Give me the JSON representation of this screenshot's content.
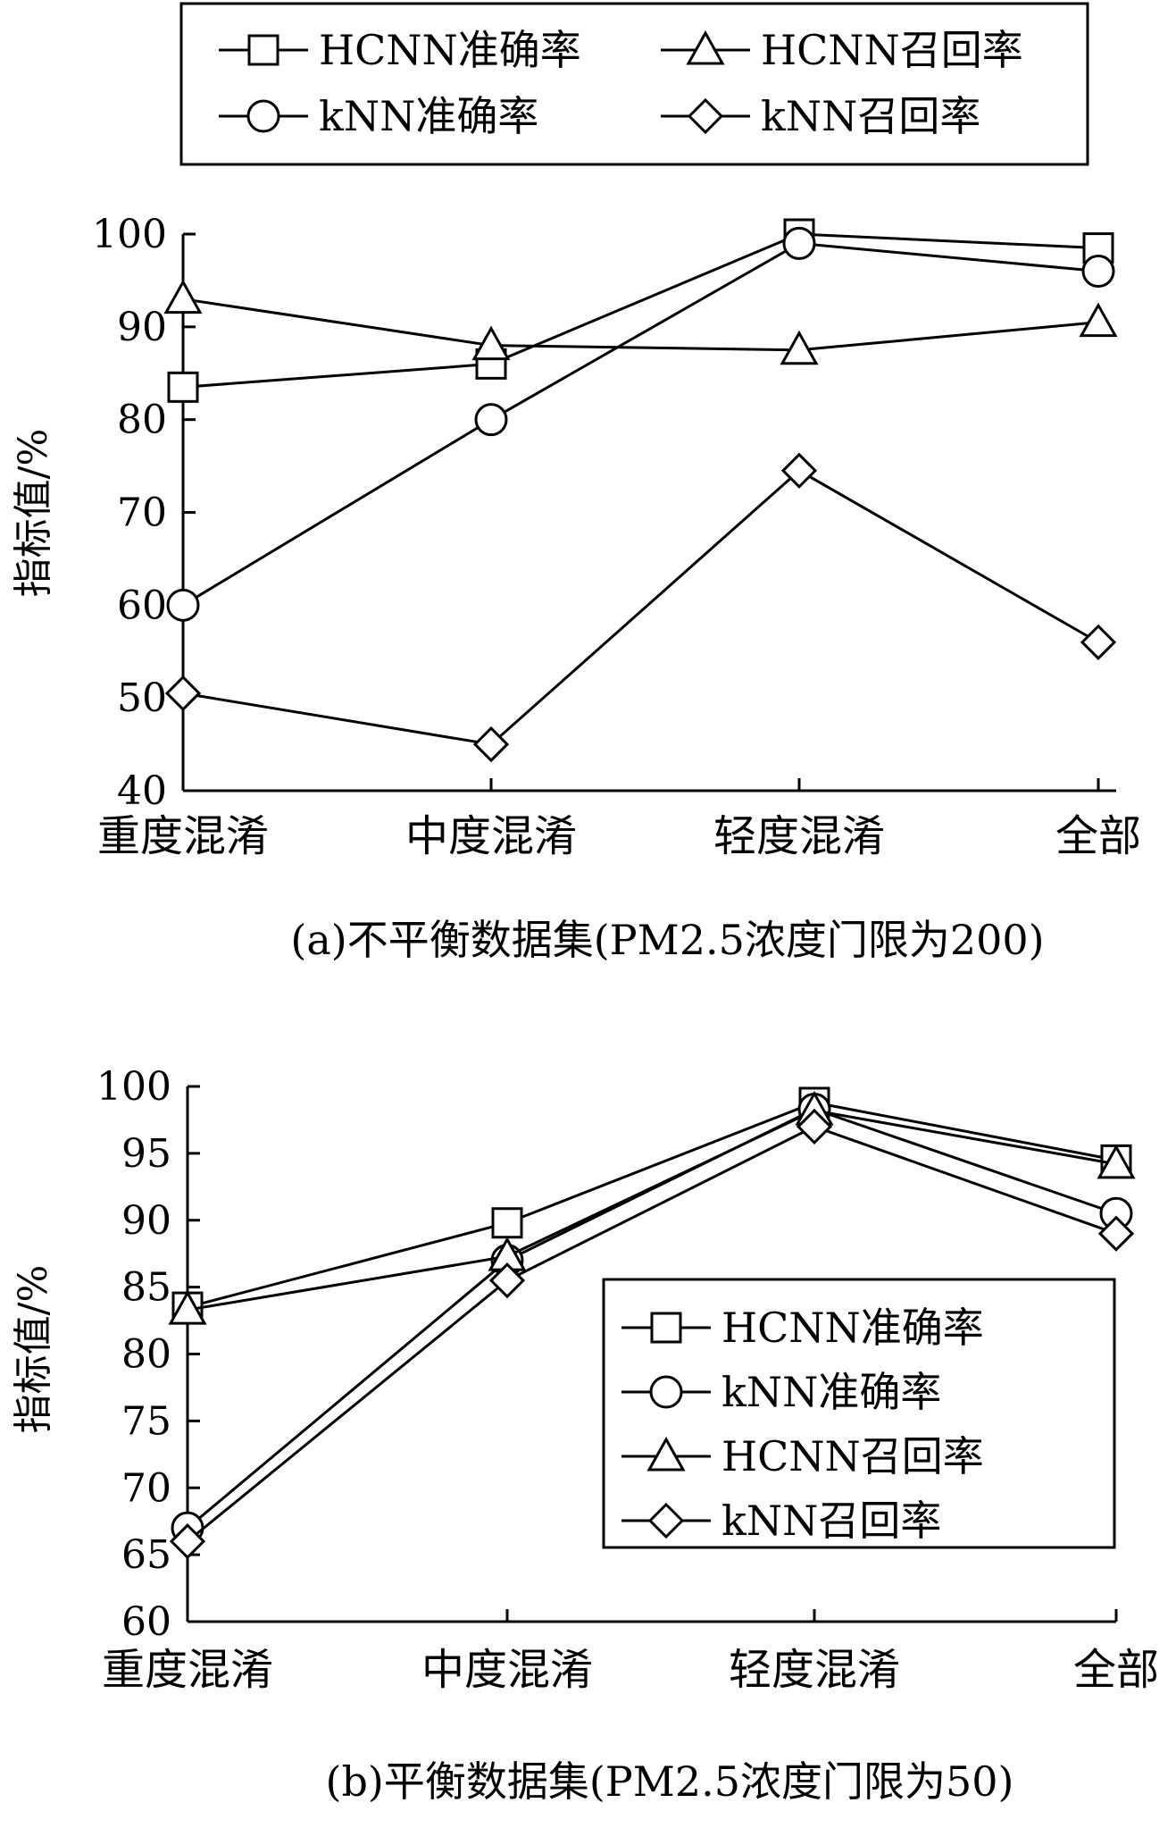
{
  "chart_data": [
    {
      "type": "line",
      "title": "(a)不平衡数据集(PM2.5浓度门限为200)",
      "ylabel": "指标值/%",
      "xlabel": "",
      "categories": [
        "重度混淆",
        "中度混淆",
        "轻度混淆",
        "全部"
      ],
      "ylim": [
        40,
        100
      ],
      "yticks": [
        40,
        50,
        60,
        70,
        80,
        90,
        100
      ],
      "grid": false,
      "legend": "top",
      "series": [
        {
          "name": "HCNN准确率",
          "marker": "square",
          "values": [
            83.5,
            86.0,
            100.0,
            98.5
          ]
        },
        {
          "name": "HCNN召回率",
          "marker": "triangle",
          "values": [
            93.0,
            88.0,
            87.5,
            90.5
          ]
        },
        {
          "name": "kNN准确率",
          "marker": "circle",
          "values": [
            60.0,
            80.0,
            99.0,
            96.0
          ]
        },
        {
          "name": "kNN召回率",
          "marker": "diamond",
          "values": [
            50.5,
            45.0,
            74.5,
            56.0
          ]
        }
      ]
    },
    {
      "type": "line",
      "title": "(b)平衡数据集(PM2.5浓度门限为50)",
      "ylabel": "指标值/%",
      "xlabel": "",
      "categories": [
        "重度混淆",
        "中度混淆",
        "轻度混淆",
        "全部"
      ],
      "ylim": [
        60,
        100
      ],
      "yticks": [
        60,
        65,
        70,
        75,
        80,
        85,
        90,
        95,
        100
      ],
      "grid": false,
      "legend": "bottom-right",
      "series": [
        {
          "name": "HCNN准确率",
          "marker": "square",
          "values": [
            83.5,
            89.8,
            98.8,
            94.5
          ]
        },
        {
          "name": "kNN准确率",
          "marker": "circle",
          "values": [
            67.0,
            87.0,
            98.3,
            90.5
          ]
        },
        {
          "name": "HCNN召回率",
          "marker": "triangle",
          "values": [
            83.3,
            87.3,
            98.2,
            94.2
          ]
        },
        {
          "name": "kNN召回率",
          "marker": "diamond",
          "values": [
            66.0,
            85.5,
            97.0,
            89.0
          ]
        }
      ]
    }
  ]
}
